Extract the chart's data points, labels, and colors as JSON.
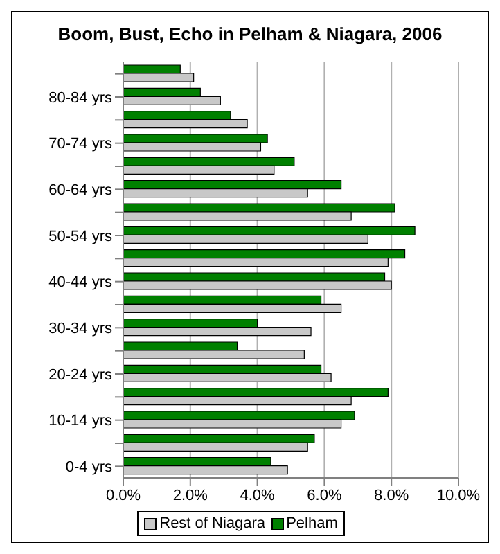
{
  "chart_data": {
    "type": "bar",
    "orientation": "horizontal",
    "title": "Boom, Bust, Echo in Pelham & Niagara, 2006",
    "categories": [
      null,
      "80-84 yrs",
      null,
      "70-74 yrs",
      null,
      "60-64 yrs",
      null,
      "50-54 yrs",
      null,
      "40-44 yrs",
      null,
      "30-34 yrs",
      null,
      "20-24 yrs",
      null,
      "10-14 yrs",
      null,
      "0-4 yrs"
    ],
    "series": [
      {
        "name": "Rest of Niagara",
        "color": "#c8c8c8",
        "values": [
          2.1,
          2.9,
          3.7,
          4.1,
          4.5,
          5.5,
          6.8,
          7.3,
          7.9,
          8.0,
          6.5,
          5.6,
          5.4,
          6.2,
          6.8,
          6.5,
          5.5,
          4.9
        ]
      },
      {
        "name": "Pelham",
        "color": "#008000",
        "values": [
          1.7,
          2.3,
          3.2,
          4.3,
          5.1,
          6.5,
          8.1,
          8.7,
          8.4,
          7.8,
          5.9,
          4.0,
          3.4,
          5.9,
          7.9,
          6.9,
          5.7,
          4.4
        ]
      }
    ],
    "xlim": [
      0,
      10
    ],
    "xticks": [
      {
        "value": 0,
        "label": "0.0%"
      },
      {
        "value": 2,
        "label": "2.0%"
      },
      {
        "value": 4,
        "label": "4.0%"
      },
      {
        "value": 6,
        "label": "6.0%"
      },
      {
        "value": 8,
        "label": "8.0%"
      },
      {
        "value": 10,
        "label": "10.0%"
      }
    ],
    "grid": "x",
    "legend": "bottom"
  }
}
